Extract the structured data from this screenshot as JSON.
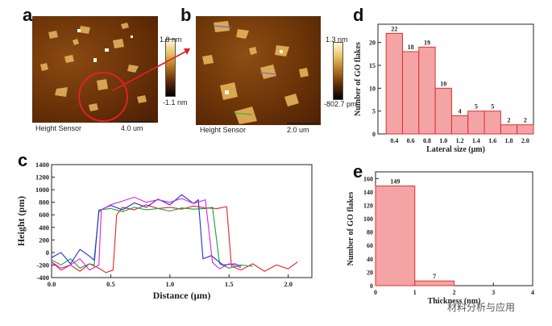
{
  "panel_labels": {
    "a": "a",
    "b": "b",
    "c": "c",
    "d": "d",
    "e": "e"
  },
  "panel_a": {
    "caption_left": "Height Sensor",
    "caption_right": "4.0 um",
    "scale_max": "1.8 nm",
    "scale_min": "-1.1 nm"
  },
  "panel_b": {
    "caption_left": "Height Sensor",
    "caption_right": "2.0 um",
    "scale_max": "1.3 nm",
    "scale_min": "-802.7 pm"
  },
  "watermark": "材料分析与应用",
  "colors": {
    "bar_fill": "#f4a4a4",
    "bar_stroke": "#e03030",
    "highlight": "#e0202a"
  },
  "chart_data": [
    {
      "id": "c",
      "type": "line",
      "xlabel": "Distance (μm)",
      "ylabel": "Height (pm)",
      "xlim": [
        0.0,
        2.2
      ],
      "ylim": [
        -400,
        1400
      ],
      "xticks": [
        0.0,
        0.5,
        1.0,
        1.5,
        2.0
      ],
      "xtick_labels": [
        "0.0",
        "0.5",
        "1.0",
        "1.5",
        "2.0"
      ],
      "yticks": [
        -400,
        -200,
        0,
        200,
        400,
        600,
        800,
        1000,
        1200,
        1400
      ],
      "ytick_labels": [
        "-400",
        "-200",
        "0",
        "200",
        "400",
        "600",
        "800",
        "1000",
        "1200",
        "1400"
      ],
      "series": [
        {
          "name": "red",
          "color": "#e8202a",
          "x": [
            0.0,
            0.08,
            0.16,
            0.24,
            0.32,
            0.4,
            0.46,
            0.52,
            0.55,
            0.6,
            0.7,
            0.8,
            0.9,
            1.0,
            1.1,
            1.2,
            1.3,
            1.4,
            1.48,
            1.52,
            1.6,
            1.7,
            1.8,
            1.9,
            2.0,
            2.08
          ],
          "y": [
            -150,
            -280,
            -200,
            -300,
            -180,
            -250,
            -320,
            -280,
            600,
            720,
            680,
            760,
            700,
            720,
            690,
            740,
            710,
            700,
            730,
            -220,
            -280,
            -180,
            -300,
            -200,
            -260,
            -150
          ]
        },
        {
          "name": "green",
          "color": "#18a028",
          "x": [
            0.0,
            0.08,
            0.16,
            0.24,
            0.32,
            0.36,
            0.4,
            0.5,
            0.6,
            0.7,
            0.8,
            0.9,
            1.0,
            1.1,
            1.2,
            1.3,
            1.36,
            1.42,
            1.5,
            1.6,
            1.7
          ],
          "y": [
            -120,
            -200,
            -100,
            -250,
            -180,
            -200,
            680,
            700,
            650,
            720,
            680,
            700,
            660,
            710,
            690,
            700,
            720,
            -180,
            -250,
            -200,
            -220
          ]
        },
        {
          "name": "blue",
          "color": "#2030d8",
          "x": [
            0.0,
            0.08,
            0.16,
            0.24,
            0.3,
            0.36,
            0.4,
            0.44,
            0.5,
            0.6,
            0.7,
            0.8,
            0.9,
            1.0,
            1.1,
            1.2,
            1.24,
            1.28,
            1.35,
            1.45,
            1.55,
            1.6
          ],
          "y": [
            -80,
            0,
            -180,
            50,
            -30,
            -120,
            650,
            700,
            750,
            680,
            790,
            720,
            850,
            760,
            920,
            780,
            840,
            -100,
            -50,
            -200,
            -180,
            -220
          ]
        },
        {
          "name": "magenta",
          "color": "#e020d8",
          "x": [
            0.0,
            0.08,
            0.16,
            0.24,
            0.32,
            0.4,
            0.42,
            0.5,
            0.6,
            0.7,
            0.8,
            0.9,
            1.0,
            1.1,
            1.2,
            1.3,
            1.36,
            1.42,
            1.5,
            1.6
          ],
          "y": [
            -150,
            -250,
            -200,
            -100,
            -280,
            -200,
            680,
            760,
            820,
            880,
            800,
            840,
            800,
            860,
            780,
            840,
            -160,
            -260,
            -180,
            -240
          ]
        }
      ]
    },
    {
      "id": "d",
      "type": "bar",
      "xlabel": "Lateral size (μm)",
      "ylabel": "Number of GO flakes",
      "xlim": [
        0.2,
        2.1
      ],
      "ylim": [
        0,
        24
      ],
      "bin_edges": [
        0.3,
        0.5,
        0.7,
        0.9,
        1.1,
        1.3,
        1.5,
        1.7,
        1.9,
        2.1
      ],
      "values": [
        22,
        18,
        19,
        10,
        4,
        5,
        5,
        2,
        2
      ],
      "data_labels": [
        "22",
        "18",
        "19",
        "10",
        "4",
        "5",
        "5",
        "2",
        "2"
      ],
      "xticks": [
        0.4,
        0.6,
        0.8,
        1.0,
        1.2,
        1.4,
        1.6,
        1.8,
        2.0
      ],
      "xtick_labels": [
        "0.4",
        "0.6",
        "0.8",
        "1.0",
        "1.2",
        "1.4",
        "1.6",
        "1.8",
        "2.0"
      ],
      "yticks": [
        0,
        5,
        10,
        15,
        20
      ],
      "ytick_labels": [
        "0",
        "5",
        "10",
        "15",
        "20"
      ]
    },
    {
      "id": "e",
      "type": "bar",
      "xlabel": "Thickness (nm)",
      "ylabel": "Number of GO flakes",
      "xlim": [
        0,
        4
      ],
      "ylim": [
        0,
        170
      ],
      "bin_edges": [
        0,
        1,
        2
      ],
      "values": [
        149,
        7
      ],
      "data_labels": [
        "149",
        "7"
      ],
      "xticks": [
        0,
        1,
        2,
        3,
        4
      ],
      "xtick_labels": [
        "0",
        "1",
        "2",
        "3",
        "4"
      ],
      "yticks": [
        0,
        20,
        40,
        60,
        80,
        100,
        120,
        140,
        160
      ],
      "ytick_labels": [
        "0",
        "20",
        "40",
        "60",
        "80",
        "100",
        "120",
        "140",
        "160"
      ]
    }
  ]
}
